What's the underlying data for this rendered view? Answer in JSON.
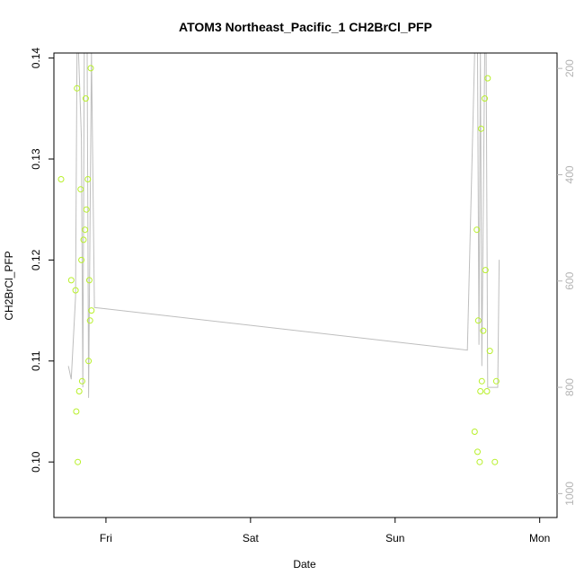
{
  "chart_data": {
    "type": "scatter",
    "title": "ATOM3 Northeast_Pacific_1 CH2BrCl_PFP",
    "xlabel": "Date",
    "ylabel": "CH2BrCl_PFP",
    "x_ticks": [
      "Fri",
      "Sat",
      "Sun",
      "Mon"
    ],
    "y_ticks": [
      "0.10",
      "0.11",
      "0.12",
      "0.13",
      "0.14"
    ],
    "y2_ticks": [
      "200",
      "400",
      "600",
      "800",
      "1000"
    ],
    "xlim_days": [
      -0.36,
      3.12
    ],
    "ylim": [
      0.0945,
      0.1405
    ],
    "y2lim": [
      1045,
      171
    ],
    "y2_reversed": true,
    "grid": false,
    "colors": {
      "points": "#b8f02a",
      "line": "#bebebe",
      "axis": "#000000",
      "right_axis": "#b4b4b4"
    },
    "series": [
      {
        "kind": "points",
        "axis": "left",
        "x_days": [
          -0.31,
          -0.24,
          -0.21,
          -0.205,
          -0.2,
          -0.195,
          -0.185,
          -0.175,
          -0.17,
          -0.165,
          -0.155,
          -0.145,
          -0.14,
          -0.135,
          -0.125,
          -0.12,
          -0.115,
          -0.11,
          -0.105,
          -0.1,
          2.55,
          2.565,
          2.57,
          2.575,
          2.585,
          2.59,
          2.595,
          2.6,
          2.61,
          2.62,
          2.625,
          2.635,
          2.64,
          2.655,
          2.69,
          2.7
        ],
        "y": [
          0.128,
          0.118,
          0.117,
          0.105,
          0.137,
          0.1,
          0.107,
          0.127,
          0.12,
          0.108,
          0.122,
          0.123,
          0.136,
          0.125,
          0.128,
          0.11,
          0.118,
          0.114,
          0.139,
          0.115,
          0.103,
          0.123,
          0.101,
          0.114,
          0.1,
          0.107,
          0.133,
          0.108,
          0.113,
          0.136,
          0.119,
          0.107,
          0.138,
          0.111,
          0.1,
          0.108
        ]
      },
      {
        "kind": "line",
        "axis": "right",
        "x_days": [
          -0.26,
          -0.24,
          -0.21,
          -0.2,
          -0.19,
          -0.17,
          -0.16,
          -0.15,
          -0.13,
          -0.12,
          -0.1,
          -0.08,
          2.5,
          2.55,
          2.57,
          2.58,
          2.59,
          2.6,
          2.62,
          2.63,
          2.64,
          2.66,
          2.71,
          2.72
        ],
        "y2": [
          760,
          785,
          630,
          171,
          171,
          330,
          800,
          171,
          171,
          820,
          171,
          650,
          730,
          171,
          171,
          720,
          171,
          760,
          171,
          171,
          800,
          800,
          800,
          560
        ]
      }
    ]
  }
}
